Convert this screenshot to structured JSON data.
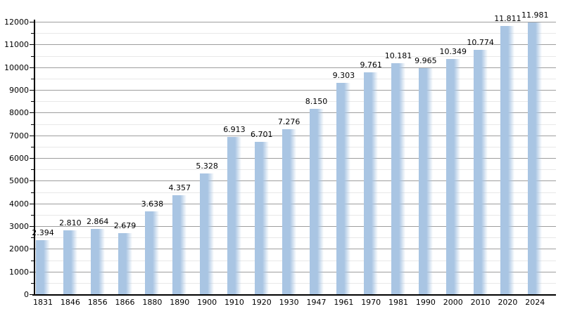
{
  "chart_data": {
    "type": "bar",
    "title": "",
    "xlabel": "",
    "ylabel": "",
    "categories": [
      "1831",
      "1846",
      "1856",
      "1866",
      "1880",
      "1890",
      "1900",
      "1910",
      "1920",
      "1930",
      "1947",
      "1961",
      "1970",
      "1981",
      "1990",
      "2000",
      "2010",
      "2020",
      "2024"
    ],
    "values": [
      2394,
      2810,
      2864,
      2679,
      3638,
      4357,
      5328,
      6913,
      6701,
      7276,
      8150,
      9303,
      9761,
      10181,
      9965,
      10349,
      10774,
      11811,
      11981
    ],
    "value_labels": [
      "2.394",
      "2.810",
      "2.864",
      "2.679",
      "3.638",
      "4.357",
      "5.328",
      "6.913",
      "6.701",
      "7.276",
      "8.150",
      "9.303",
      "9.761",
      "10.181",
      "9.965",
      "10.349",
      "10.774",
      "11.811",
      "11.981"
    ],
    "ylim": [
      0,
      12000
    ],
    "y_major_step": 1000,
    "y_minor_step": 500,
    "y_tick_labels": [
      "0",
      "1000",
      "2000",
      "3000",
      "4000",
      "5000",
      "6000",
      "7000",
      "8000",
      "9000",
      "10000",
      "11000",
      "12000"
    ],
    "grid": true,
    "legend": null,
    "colors": {
      "bar_solid": "#a9c5e3",
      "bar_fade_end": "rgba(169,197,227,0)",
      "major_grid": "#9e9e9e",
      "minor_grid": "#e8e8e8",
      "axis": "#000000",
      "text": "#000000",
      "background": "#ffffff"
    }
  }
}
